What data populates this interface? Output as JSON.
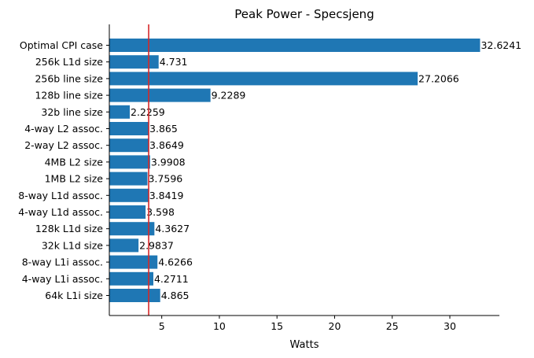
{
  "chart_data": {
    "type": "bar",
    "orientation": "horizontal",
    "title": "Peak Power - Specsjeng",
    "xlabel": "Watts",
    "ylabel": "",
    "xlim": [
      0.45,
      34.3
    ],
    "xticks": [
      5,
      10,
      15,
      20,
      25,
      30
    ],
    "categories": [
      "Optimal CPI case",
      "256k L1d size",
      "256b line size",
      "128b line size",
      "32b line size",
      "4-way L2 assoc.",
      "2-way L2 assoc.",
      "4MB L2 size",
      "1MB L2 size",
      "8-way L1d assoc.",
      "4-way L1d assoc.",
      "128k L1d size",
      "32k L1d size",
      "8-way L1i assoc.",
      "4-way L1i assoc.",
      "64k L1i size"
    ],
    "values": [
      32.6241,
      4.731,
      27.2066,
      9.2289,
      2.2259,
      3.865,
      3.8649,
      3.9908,
      3.7596,
      3.8419,
      3.598,
      4.3627,
      2.9837,
      4.6266,
      4.2711,
      4.865
    ],
    "value_labels": [
      "32.6241",
      "4.731",
      "27.2066",
      "9.2289",
      "2.2259",
      "3.865",
      "3.8649",
      "3.9908",
      "3.7596",
      "3.8419",
      "3.598",
      "4.3627",
      "2.9837",
      "4.6266",
      "4.2711",
      "4.865"
    ],
    "reference_line": {
      "x": 3.865,
      "color": "#d62728"
    },
    "bar_color": "#1f77b4",
    "grid": false,
    "legend": "none"
  }
}
